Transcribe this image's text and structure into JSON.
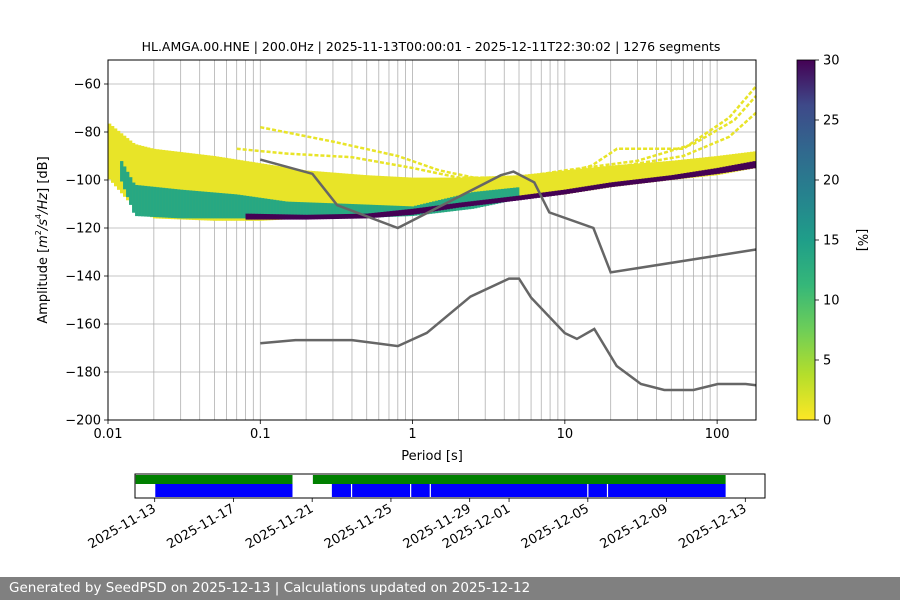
{
  "chart_data": [
    {
      "type": "heatmap",
      "subtype": "probabilistic-power-spectral-density",
      "title": "HL.AMGA.00.HNE | 200.0Hz | 2025-11-13T00:00:01 - 2025-12-11T22:30:02 | 1276 segments",
      "xlabel": "Period [s]",
      "ylabel_parts": [
        "Amplitude [",
        "m",
        "2",
        "/s",
        "4",
        "/Hz",
        "] [dB]"
      ],
      "xscale": "log",
      "xlim": [
        0.01,
        180
      ],
      "ylim": [
        -200,
        -50
      ],
      "grid": true,
      "x_ticks": [
        {
          "value": 0.01,
          "label": "0.01"
        },
        {
          "value": 0.1,
          "label": "0.1"
        },
        {
          "value": 1,
          "label": "1"
        },
        {
          "value": 10,
          "label": "10"
        },
        {
          "value": 100,
          "label": "100"
        }
      ],
      "y_ticks": [
        {
          "value": -60,
          "label": "−60"
        },
        {
          "value": -80,
          "label": "−80"
        },
        {
          "value": -100,
          "label": "−100"
        },
        {
          "value": -120,
          "label": "−120"
        },
        {
          "value": -140,
          "label": "−140"
        },
        {
          "value": -160,
          "label": "−160"
        },
        {
          "value": -180,
          "label": "−180"
        },
        {
          "value": -200,
          "label": "−200"
        }
      ],
      "colorbar": {
        "label": "[%]",
        "colormap": "viridis_r",
        "range": [
          0,
          30
        ],
        "ticks": [
          {
            "value": 0,
            "label": "0"
          },
          {
            "value": 5,
            "label": "5"
          },
          {
            "value": 10,
            "label": "10"
          },
          {
            "value": 15,
            "label": "15"
          },
          {
            "value": 20,
            "label": "20"
          },
          {
            "value": 25,
            "label": "25"
          },
          {
            "value": 30,
            "label": "30"
          }
        ]
      },
      "noise_models": [
        {
          "name": "NHNM",
          "color": "#666666",
          "points": [
            [
              0.1,
              -91.5
            ],
            [
              0.22,
              -97.4
            ],
            [
              0.32,
              -110.5
            ],
            [
              0.8,
              -120
            ],
            [
              3.8,
              -98
            ],
            [
              4.6,
              -96.5
            ],
            [
              6.3,
              -101
            ],
            [
              7.9,
              -113.5
            ],
            [
              15.4,
              -120
            ],
            [
              20,
              -138.5
            ],
            [
              354.8,
              -126
            ]
          ]
        },
        {
          "name": "NLNM",
          "color": "#666666",
          "points": [
            [
              0.1,
              -168
            ],
            [
              0.17,
              -166.7
            ],
            [
              0.4,
              -166.7
            ],
            [
              0.8,
              -169.2
            ],
            [
              1.24,
              -163.7
            ],
            [
              2.4,
              -148.6
            ],
            [
              4.3,
              -141.1
            ],
            [
              5,
              -141.1
            ],
            [
              6,
              -149
            ],
            [
              10,
              -163.8
            ],
            [
              12,
              -166.2
            ],
            [
              15.6,
              -162.1
            ],
            [
              21.9,
              -177.5
            ],
            [
              31.6,
              -185
            ],
            [
              45,
              -187.5
            ],
            [
              70,
              -187.5
            ],
            [
              101,
              -185
            ],
            [
              154,
              -185
            ],
            [
              328,
              -187.5
            ]
          ]
        }
      ],
      "ppsd_bands": [
        {
          "name": "main-background",
          "intensity": 1,
          "points": [
            [
              0.01,
              -76,
              -99
            ],
            [
              0.015,
              -85,
              -112
            ],
            [
              0.02,
              -87,
              -116
            ],
            [
              0.05,
              -90,
              -117
            ],
            [
              0.1,
              -93,
              -117
            ],
            [
              0.2,
              -96,
              -116
            ],
            [
              0.5,
              -98,
              -115
            ],
            [
              1,
              -99,
              -113
            ],
            [
              2,
              -99,
              -111
            ],
            [
              5,
              -98,
              -108
            ],
            [
              10,
              -96,
              -106
            ],
            [
              20,
              -94,
              -103
            ],
            [
              50,
              -92,
              -100
            ],
            [
              100,
              -90,
              -98
            ],
            [
              180,
              -88,
              -95
            ]
          ]
        },
        {
          "name": "mid-density",
          "intensity": 12,
          "points": [
            [
              0.012,
              -91,
              -99
            ],
            [
              0.015,
              -102,
              -115
            ],
            [
              0.03,
              -104,
              -116
            ],
            [
              0.07,
              -106,
              -116
            ],
            [
              0.15,
              -109,
              -116
            ],
            [
              0.4,
              -110,
              -116
            ],
            [
              1,
              -111,
              -115
            ],
            [
              2.5,
              -105,
              -112
            ],
            [
              5,
              -103,
              -108
            ]
          ]
        },
        {
          "name": "peak-density",
          "intensity": 30,
          "points": [
            [
              0.08,
              -114,
              -116.5
            ],
            [
              0.2,
              -114.5,
              -116.5
            ],
            [
              0.5,
              -114,
              -116
            ],
            [
              1,
              -112,
              -114.5
            ],
            [
              2,
              -109.5,
              -111.5
            ],
            [
              5,
              -106.5,
              -108.5
            ],
            [
              10,
              -104,
              -106
            ],
            [
              20,
              -101,
              -103
            ],
            [
              50,
              -98,
              -100
            ],
            [
              100,
              -95,
              -97.5
            ],
            [
              180,
              -92,
              -95
            ]
          ]
        }
      ],
      "ppsd_traces": [
        {
          "name": "upper-trace-1",
          "points": [
            [
              0.1,
              -78
            ],
            [
              0.3,
              -84
            ],
            [
              0.8,
              -90
            ],
            [
              1.5,
              -96
            ],
            [
              3,
              -100
            ],
            [
              8,
              -99
            ],
            [
              15,
              -94
            ],
            [
              22,
              -87
            ],
            [
              30,
              -87
            ],
            [
              60,
              -87
            ],
            [
              120,
              -74
            ],
            [
              180,
              -61
            ]
          ]
        },
        {
          "name": "upper-trace-2",
          "points": [
            [
              0.07,
              -87
            ],
            [
              0.15,
              -89
            ],
            [
              0.4,
              -90.5
            ],
            [
              1,
              -95
            ],
            [
              2,
              -99
            ],
            [
              5,
              -99
            ],
            [
              10,
              -96
            ],
            [
              30,
              -92
            ],
            [
              70,
              -85
            ],
            [
              130,
              -75
            ],
            [
              180,
              -65
            ]
          ]
        },
        {
          "name": "upper-trace-3",
          "points": [
            [
              0.04,
              -92
            ],
            [
              0.15,
              -96
            ],
            [
              0.5,
              -100
            ],
            [
              1.5,
              -104
            ],
            [
              5,
              -101
            ],
            [
              20,
              -95
            ],
            [
              60,
              -90
            ],
            [
              120,
              -82
            ],
            [
              180,
              -72
            ]
          ]
        },
        {
          "name": "upper-trace-4",
          "points": [
            [
              0.03,
              -103
            ],
            [
              0.1,
              -106
            ],
            [
              0.5,
              -108
            ],
            [
              1.2,
              -109
            ]
          ]
        }
      ]
    },
    {
      "type": "timeline",
      "dates": [
        "2025-11-13",
        "2025-11-17",
        "2025-11-21",
        "2025-11-25",
        "2025-11-29",
        "2025-12-01",
        "2025-12-05",
        "2025-12-09",
        "2025-12-13"
      ],
      "range": [
        "2025-11-12",
        "2025-12-14"
      ],
      "data_available": {
        "color": "#008000",
        "intervals": [
          [
            "2025-11-13",
            "2025-11-20"
          ],
          [
            "2025-11-22",
            "2025-12-12"
          ]
        ]
      },
      "psd_computed": {
        "color": "#0000ff",
        "intervals": [
          [
            "2025-11-13",
            "2025-11-20"
          ],
          [
            "2025-11-22",
            "2025-12-12"
          ]
        ]
      },
      "gap_marks": [
        "2025-11-13",
        "2025-11-23",
        "2025-11-26",
        "2025-11-27",
        "2025-12-05",
        "2025-12-06"
      ]
    }
  ],
  "footer": {
    "text": "Generated by SeedPSD on 2025-12-13 | Calculations updated on 2025-12-12"
  }
}
